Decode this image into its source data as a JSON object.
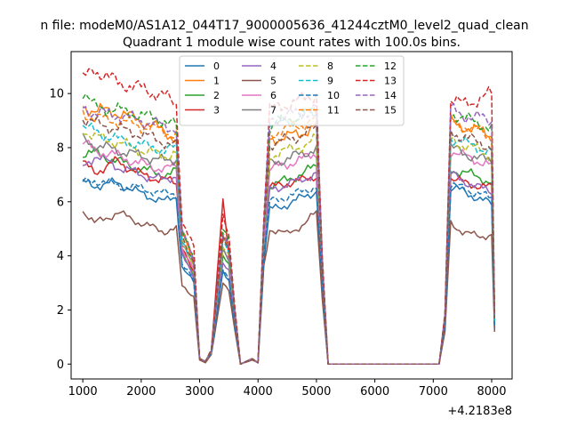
{
  "header": {
    "suptitle": "n file: modeM0/AS1A12_044T17_9000005636_41244cztM0_level2_quad_clean",
    "title": "Quadrant 1 module wise count rates with 100.0s bins."
  },
  "chart_data": {
    "type": "line",
    "title": "Quadrant 1 module wise count rates with 100.0s bins.",
    "xlabel": "",
    "ylabel": "",
    "x_offset_label": "+4.2183e8",
    "xlim": [
      800,
      8350
    ],
    "ylim": [
      -0.55,
      11.55
    ],
    "xticks": [
      1000,
      2000,
      3000,
      4000,
      5000,
      6000,
      7000,
      8000
    ],
    "yticks": [
      0,
      2,
      4,
      6,
      8,
      10
    ],
    "grid": false,
    "legend_position": "top-center",
    "legend_columns": 4,
    "breakpoints_x": [
      1000,
      1200,
      1600,
      2000,
      2400,
      2600,
      2700,
      2900,
      3000,
      3100,
      3200,
      3400,
      3500,
      3600,
      3700,
      3900,
      4000,
      4100,
      4200,
      4500,
      4800,
      5000,
      5100,
      5200,
      7100,
      7200,
      7300,
      7500,
      7800,
      8000,
      8050
    ],
    "note": "Dense 100 s bins; series values below are given at breakpoint times and interpolated between them.",
    "series": [
      {
        "name": "0",
        "color": "#1f77b4",
        "dash": false,
        "values": [
          6.7,
          6.6,
          6.7,
          6.3,
          6.0,
          6.2,
          3.6,
          3.0,
          0.2,
          0.1,
          0.4,
          3.4,
          3.1,
          1.5,
          0.0,
          0.2,
          0.05,
          3.8,
          5.7,
          5.9,
          6.2,
          6.4,
          2.8,
          0.0,
          0.0,
          1.4,
          6.5,
          6.4,
          6.1,
          5.9,
          1.2
        ]
      },
      {
        "name": "1",
        "color": "#ff7f0e",
        "dash": false,
        "values": [
          9.5,
          9.4,
          9.3,
          9.0,
          8.6,
          8.3,
          4.8,
          3.8,
          0.2,
          0.1,
          0.5,
          4.8,
          4.3,
          2.0,
          0.0,
          0.2,
          0.05,
          5.0,
          8.3,
          8.4,
          8.6,
          8.8,
          3.6,
          0.0,
          0.0,
          1.7,
          8.9,
          8.8,
          8.6,
          8.5,
          1.8
        ]
      },
      {
        "name": "2",
        "color": "#2ca02c",
        "dash": false,
        "values": [
          7.8,
          7.8,
          7.5,
          7.2,
          7.0,
          7.1,
          4.2,
          3.3,
          0.2,
          0.1,
          0.4,
          4.0,
          3.6,
          1.7,
          0.0,
          0.2,
          0.05,
          4.3,
          6.6,
          6.8,
          7.1,
          7.3,
          3.1,
          0.0,
          0.0,
          1.5,
          7.2,
          7.1,
          6.9,
          6.7,
          1.4
        ]
      },
      {
        "name": "3",
        "color": "#d62728",
        "dash": false,
        "values": [
          7.4,
          7.1,
          7.5,
          7.0,
          6.8,
          6.7,
          4.4,
          3.3,
          0.2,
          0.1,
          0.5,
          6.0,
          4.0,
          1.8,
          0.0,
          0.2,
          0.05,
          4.6,
          6.5,
          6.7,
          6.8,
          7.0,
          3.0,
          0.0,
          0.0,
          1.5,
          6.9,
          6.7,
          6.6,
          6.5,
          1.3
        ]
      },
      {
        "name": "4",
        "color": "#9467bd",
        "dash": false,
        "values": [
          7.3,
          7.7,
          7.3,
          7.0,
          6.8,
          7.0,
          4.0,
          3.2,
          0.2,
          0.1,
          0.4,
          3.8,
          3.5,
          1.6,
          0.0,
          0.2,
          0.05,
          4.2,
          6.5,
          6.6,
          6.9,
          7.0,
          3.0,
          0.0,
          0.0,
          1.5,
          7.0,
          6.8,
          6.5,
          6.4,
          1.4
        ]
      },
      {
        "name": "5",
        "color": "#8c564b",
        "dash": false,
        "values": [
          5.7,
          5.2,
          5.6,
          5.2,
          4.9,
          5.0,
          2.9,
          2.5,
          0.15,
          0.05,
          0.35,
          3.0,
          2.7,
          1.3,
          0.0,
          0.15,
          0.05,
          3.6,
          5.0,
          4.8,
          5.2,
          5.6,
          2.4,
          0.0,
          0.0,
          1.2,
          5.2,
          4.9,
          4.7,
          4.8,
          1.2
        ]
      },
      {
        "name": "6",
        "color": "#e377c2",
        "dash": false,
        "values": [
          8.2,
          7.9,
          7.7,
          7.4,
          7.2,
          7.3,
          4.3,
          3.5,
          0.2,
          0.1,
          0.4,
          4.2,
          3.8,
          1.8,
          0.0,
          0.2,
          0.05,
          4.6,
          7.2,
          7.4,
          7.6,
          7.8,
          3.3,
          0.0,
          0.0,
          1.6,
          7.9,
          7.7,
          7.5,
          7.3,
          1.5
        ]
      },
      {
        "name": "7",
        "color": "#7f7f7f",
        "dash": false,
        "values": [
          8.3,
          8.1,
          7.9,
          7.7,
          7.5,
          7.6,
          4.4,
          3.6,
          0.2,
          0.1,
          0.45,
          4.3,
          3.9,
          1.8,
          0.0,
          0.2,
          0.05,
          4.7,
          7.4,
          7.6,
          7.8,
          8.0,
          3.4,
          0.0,
          0.0,
          1.6,
          8.0,
          7.8,
          7.6,
          7.5,
          1.5
        ]
      },
      {
        "name": "8",
        "color": "#bcbd22",
        "dash": true,
        "values": [
          8.7,
          8.4,
          8.2,
          7.9,
          7.7,
          7.8,
          4.5,
          3.7,
          0.2,
          0.1,
          0.45,
          4.4,
          4.0,
          1.9,
          0.0,
          0.2,
          0.05,
          4.8,
          7.7,
          7.9,
          8.1,
          8.3,
          3.5,
          0.0,
          0.0,
          1.6,
          8.3,
          8.1,
          7.9,
          7.7,
          1.6
        ]
      },
      {
        "name": "9",
        "color": "#17becf",
        "dash": true,
        "values": [
          8.8,
          8.6,
          8.3,
          8.1,
          7.9,
          8.0,
          4.6,
          3.8,
          0.2,
          0.1,
          0.45,
          4.5,
          4.1,
          1.9,
          0.0,
          0.2,
          0.05,
          4.9,
          8.8,
          9.0,
          9.2,
          9.3,
          3.7,
          0.0,
          0.0,
          1.7,
          8.4,
          8.2,
          8.0,
          7.8,
          1.6
        ]
      },
      {
        "name": "10",
        "color": "#1f77b4",
        "dash": true,
        "values": [
          6.7,
          6.8,
          6.6,
          6.5,
          6.3,
          6.3,
          3.7,
          3.1,
          0.2,
          0.1,
          0.4,
          3.5,
          3.2,
          1.5,
          0.0,
          0.2,
          0.05,
          4.0,
          6.0,
          6.2,
          6.4,
          6.6,
          2.9,
          0.0,
          0.0,
          1.4,
          6.6,
          6.5,
          6.3,
          6.1,
          1.3
        ]
      },
      {
        "name": "11",
        "color": "#ff7f0e",
        "dash": true,
        "values": [
          9.3,
          9.1,
          9.0,
          8.8,
          8.6,
          8.5,
          4.9,
          3.9,
          0.2,
          0.1,
          0.5,
          4.9,
          4.4,
          2.0,
          0.0,
          0.2,
          0.05,
          5.1,
          8.5,
          8.7,
          8.9,
          9.1,
          3.7,
          0.0,
          0.0,
          1.8,
          9.0,
          8.8,
          8.6,
          8.4,
          1.8
        ]
      },
      {
        "name": "12",
        "color": "#2ca02c",
        "dash": true,
        "values": [
          10.1,
          9.5,
          9.4,
          9.2,
          9.0,
          8.8,
          5.0,
          4.0,
          0.2,
          0.1,
          0.5,
          5.0,
          4.5,
          2.1,
          0.0,
          0.2,
          0.05,
          5.2,
          8.8,
          9.0,
          9.2,
          9.4,
          3.8,
          0.0,
          0.0,
          1.8,
          9.3,
          9.1,
          8.9,
          8.7,
          1.8
        ]
      },
      {
        "name": "13",
        "color": "#d62728",
        "dash": true,
        "values": [
          10.5,
          10.9,
          10.4,
          10.2,
          9.9,
          9.6,
          5.3,
          4.3,
          0.2,
          0.1,
          0.55,
          5.4,
          4.8,
          2.2,
          0.0,
          0.2,
          0.05,
          5.5,
          9.4,
          9.6,
          9.8,
          10.0,
          4.0,
          0.0,
          0.0,
          1.9,
          9.8,
          9.6,
          9.8,
          10.0,
          1.9
        ]
      },
      {
        "name": "14",
        "color": "#9467bd",
        "dash": true,
        "values": [
          9.5,
          9.3,
          9.2,
          9.0,
          8.8,
          8.7,
          4.9,
          3.9,
          0.2,
          0.1,
          0.5,
          4.9,
          4.4,
          2.0,
          0.0,
          0.2,
          0.05,
          5.1,
          9.0,
          9.2,
          9.3,
          9.5,
          3.8,
          0.0,
          0.0,
          1.8,
          9.4,
          9.2,
          9.1,
          9.0,
          1.8
        ]
      },
      {
        "name": "15",
        "color": "#8c564b",
        "dash": true,
        "values": [
          9.1,
          8.9,
          8.7,
          8.5,
          8.2,
          8.1,
          4.7,
          3.8,
          0.2,
          0.1,
          0.5,
          4.7,
          4.2,
          1.9,
          0.0,
          0.2,
          0.05,
          5.0,
          8.1,
          8.3,
          8.5,
          8.7,
          3.6,
          0.0,
          0.0,
          1.7,
          8.6,
          8.4,
          8.2,
          8.0,
          1.7
        ]
      }
    ]
  }
}
